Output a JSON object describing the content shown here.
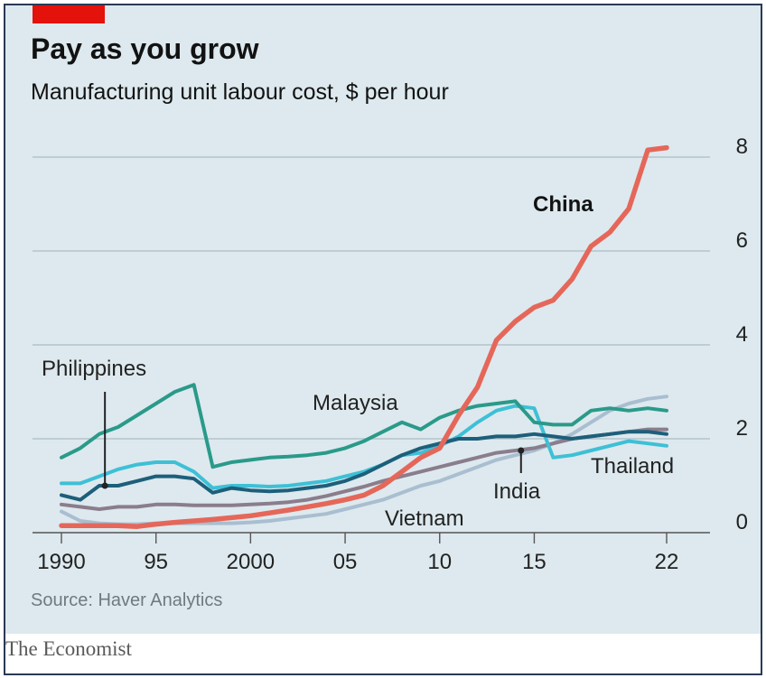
{
  "header": {
    "title": "Pay as you grow",
    "subtitle": "Manufacturing unit labour cost, $ per hour"
  },
  "footer": {
    "source": "Source: Haver Analytics",
    "brand": "The Economist"
  },
  "colors": {
    "background": "#dde9ee",
    "brand_red": "#e3120b",
    "china": "#e5675a",
    "malaysia": "#2a9a8a",
    "philippines": "#1d5f7a",
    "thailand": "#3ec0d6",
    "india": "#8a7d8c",
    "vietnam": "#a9bed0"
  },
  "chart_data": {
    "type": "line",
    "title": "Pay as you grow",
    "subtitle": "Manufacturing unit labour cost, $ per hour",
    "ylim": [
      0,
      8
    ],
    "xlim": [
      1990,
      2022
    ],
    "y_ticks": [
      0,
      2,
      4,
      6,
      8
    ],
    "y_tick_labels": [
      "0",
      "2",
      "4",
      "6",
      "8"
    ],
    "x_ticks": [
      1990,
      1995,
      2000,
      2005,
      2010,
      2015,
      2022
    ],
    "x_tick_labels": [
      "1990",
      "95",
      "2000",
      "05",
      "10",
      "15",
      "22"
    ],
    "grid": "horizontal",
    "y_axis_position": "right",
    "legend": "inline labels",
    "series": [
      {
        "name": "China",
        "color_key": "china",
        "x": [
          1990,
          1991,
          1992,
          1993,
          1994,
          1995,
          1996,
          1997,
          1998,
          1999,
          2000,
          2001,
          2002,
          2003,
          2004,
          2005,
          2006,
          2007,
          2008,
          2009,
          2010,
          2011,
          2012,
          2013,
          2014,
          2015,
          2016,
          2017,
          2018,
          2019,
          2020,
          2021,
          2022
        ],
        "values": [
          0.15,
          0.15,
          0.15,
          0.15,
          0.13,
          0.18,
          0.22,
          0.25,
          0.28,
          0.32,
          0.36,
          0.42,
          0.48,
          0.55,
          0.62,
          0.7,
          0.8,
          1.0,
          1.3,
          1.6,
          1.8,
          2.5,
          3.1,
          4.1,
          4.5,
          4.8,
          4.95,
          5.4,
          6.1,
          6.4,
          6.9,
          8.15,
          8.2
        ]
      },
      {
        "name": "Malaysia",
        "color_key": "malaysia",
        "x": [
          1990,
          1991,
          1992,
          1993,
          1994,
          1995,
          1996,
          1997,
          1998,
          1999,
          2000,
          2001,
          2002,
          2003,
          2004,
          2005,
          2006,
          2007,
          2008,
          2009,
          2010,
          2011,
          2012,
          2013,
          2014,
          2015,
          2016,
          2017,
          2018,
          2019,
          2020,
          2021,
          2022
        ],
        "values": [
          1.6,
          1.8,
          2.1,
          2.25,
          2.5,
          2.75,
          3.0,
          3.15,
          1.4,
          1.5,
          1.55,
          1.6,
          1.62,
          1.65,
          1.7,
          1.8,
          1.95,
          2.15,
          2.35,
          2.2,
          2.45,
          2.6,
          2.7,
          2.75,
          2.8,
          2.35,
          2.3,
          2.3,
          2.6,
          2.65,
          2.6,
          2.65,
          2.6
        ]
      },
      {
        "name": "Philippines",
        "color_key": "philippines",
        "x": [
          1990,
          1991,
          1992,
          1993,
          1994,
          1995,
          1996,
          1997,
          1998,
          1999,
          2000,
          2001,
          2002,
          2003,
          2004,
          2005,
          2006,
          2007,
          2008,
          2009,
          2010,
          2011,
          2012,
          2013,
          2014,
          2015,
          2016,
          2017,
          2018,
          2019,
          2020,
          2021,
          2022
        ],
        "values": [
          0.8,
          0.7,
          1.0,
          1.0,
          1.1,
          1.2,
          1.2,
          1.15,
          0.85,
          0.95,
          0.9,
          0.88,
          0.9,
          0.95,
          1.0,
          1.1,
          1.25,
          1.45,
          1.65,
          1.8,
          1.9,
          2.0,
          2.0,
          2.05,
          2.05,
          2.1,
          2.05,
          2.0,
          2.05,
          2.1,
          2.15,
          2.15,
          2.1
        ]
      },
      {
        "name": "Thailand",
        "color_key": "thailand",
        "x": [
          1990,
          1991,
          1992,
          1993,
          1994,
          1995,
          1996,
          1997,
          1998,
          1999,
          2000,
          2001,
          2002,
          2003,
          2004,
          2005,
          2006,
          2007,
          2008,
          2009,
          2010,
          2011,
          2012,
          2013,
          2014,
          2015,
          2016,
          2017,
          2018,
          2019,
          2020,
          2021,
          2022
        ],
        "values": [
          1.05,
          1.05,
          1.2,
          1.35,
          1.45,
          1.5,
          1.5,
          1.3,
          0.95,
          1.0,
          1.0,
          0.98,
          1.0,
          1.05,
          1.1,
          1.2,
          1.3,
          1.45,
          1.65,
          1.7,
          1.85,
          2.05,
          2.35,
          2.6,
          2.7,
          2.65,
          1.6,
          1.65,
          1.75,
          1.85,
          1.95,
          1.9,
          1.85
        ]
      },
      {
        "name": "India",
        "color_key": "india",
        "x": [
          1990,
          1991,
          1992,
          1993,
          1994,
          1995,
          1996,
          1997,
          1998,
          1999,
          2000,
          2001,
          2002,
          2003,
          2004,
          2005,
          2006,
          2007,
          2008,
          2009,
          2010,
          2011,
          2012,
          2013,
          2014,
          2015,
          2016,
          2017,
          2018,
          2019,
          2020,
          2021,
          2022
        ],
        "values": [
          0.6,
          0.55,
          0.5,
          0.55,
          0.55,
          0.6,
          0.6,
          0.58,
          0.58,
          0.58,
          0.6,
          0.62,
          0.65,
          0.7,
          0.78,
          0.88,
          0.98,
          1.1,
          1.2,
          1.3,
          1.4,
          1.5,
          1.6,
          1.7,
          1.75,
          1.8,
          1.9,
          2.0,
          2.05,
          2.1,
          2.15,
          2.2,
          2.2
        ]
      },
      {
        "name": "Vietnam",
        "color_key": "vietnam",
        "x": [
          1990,
          1991,
          1992,
          1993,
          1994,
          1995,
          1996,
          1997,
          1998,
          1999,
          2000,
          2001,
          2002,
          2003,
          2004,
          2005,
          2006,
          2007,
          2008,
          2009,
          2010,
          2011,
          2012,
          2013,
          2014,
          2015,
          2016,
          2017,
          2018,
          2019,
          2020,
          2021,
          2022
        ],
        "values": [
          0.45,
          0.25,
          0.2,
          0.18,
          0.18,
          0.2,
          0.2,
          0.2,
          0.2,
          0.2,
          0.22,
          0.25,
          0.3,
          0.35,
          0.4,
          0.5,
          0.6,
          0.7,
          0.85,
          1.0,
          1.1,
          1.25,
          1.4,
          1.55,
          1.65,
          1.75,
          1.9,
          2.1,
          2.35,
          2.6,
          2.75,
          2.85,
          2.9
        ]
      }
    ],
    "annotations": [
      "China",
      "Malaysia",
      "Philippines",
      "Thailand",
      "India",
      "Vietnam"
    ]
  }
}
